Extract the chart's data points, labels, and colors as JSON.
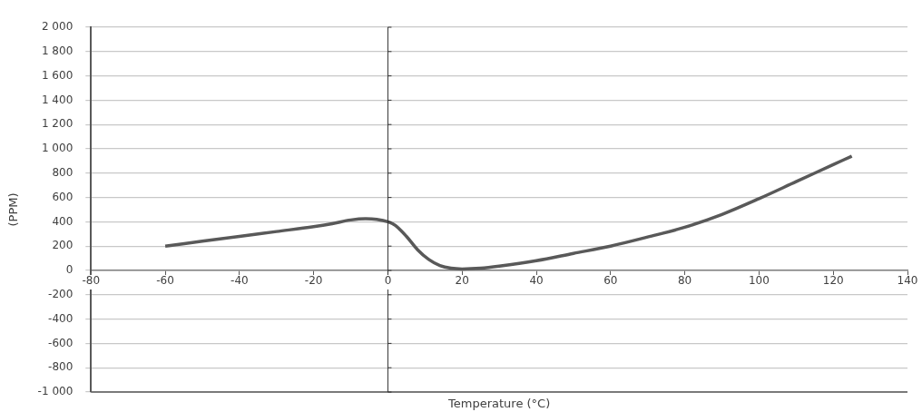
{
  "chart_data": {
    "type": "line",
    "xlabel": "Temperature (°C)",
    "ylabel": "(PPM)",
    "x": [
      -60,
      -50,
      -40,
      -30,
      -20,
      -15,
      -10,
      -6,
      -3,
      0,
      2,
      5,
      8,
      11,
      14,
      17,
      20,
      25,
      30,
      40,
      50,
      60,
      70,
      80,
      90,
      100,
      110,
      120,
      125
    ],
    "series": [
      {
        "color": "#595959",
        "values": [
          200,
          240,
          280,
          320,
          360,
          385,
          415,
          425,
          420,
          400,
          370,
          280,
          170,
          90,
          40,
          18,
          12,
          18,
          35,
          80,
          140,
          200,
          275,
          355,
          460,
          590,
          730,
          870,
          940
        ]
      }
    ],
    "xlim": [
      -80,
      140
    ],
    "xticks": [
      -80,
      -60,
      -40,
      -20,
      0,
      20,
      40,
      60,
      80,
      100,
      120,
      140
    ],
    "ylim": [
      -1000,
      2000
    ],
    "yticks": [
      {
        "value": -1000,
        "label": "-1 000"
      },
      -800,
      -600,
      -400,
      -200,
      0,
      200,
      400,
      600,
      800,
      {
        "value": 1000,
        "label": "1 000"
      },
      {
        "value": 1200,
        "label": "1 200"
      },
      {
        "value": 1400,
        "label": "1 400"
      },
      {
        "value": 1600,
        "label": "1 600"
      },
      {
        "value": 1800,
        "label": "1 800"
      },
      {
        "value": 2000,
        "label": "2 000"
      }
    ],
    "ref_lines": [
      {
        "axis": "x",
        "value": 0,
        "color": "#333333"
      }
    ],
    "grid": "y",
    "legend": false,
    "marker": "none",
    "line_style": "solid"
  }
}
